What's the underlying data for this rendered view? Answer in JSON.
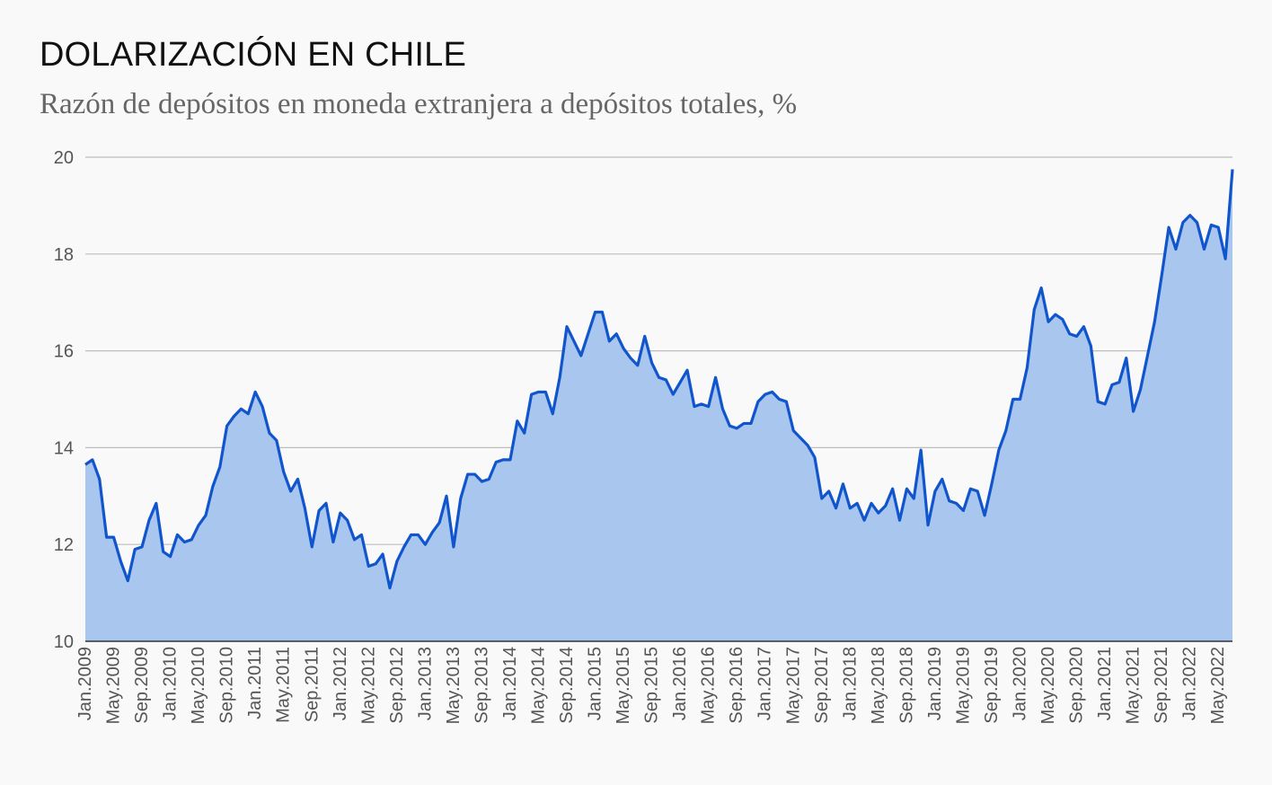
{
  "header": {
    "title": "DOLARIZACIÓN EN CHILE",
    "subtitle": "Razón de depósitos en moneda extranjera a depósitos totales, %"
  },
  "colors": {
    "line": "#1155cc",
    "area": "#a9c6ee",
    "grid": "#bdbdbd",
    "background": "#f9f9f9"
  },
  "chart_data": {
    "type": "area",
    "title": "DOLARIZACIÓN EN CHILE",
    "subtitle": "Razón de depósitos en moneda extranjera a depósitos totales, %",
    "xlabel": "",
    "ylabel": "",
    "ylim": [
      10,
      20
    ],
    "yticks": [
      10,
      12,
      14,
      16,
      18,
      20
    ],
    "grid": true,
    "x_start": "Jan.2009",
    "x_tick_labels": [
      "Jan.2009",
      "May.2009",
      "Sep.2009",
      "Jan.2010",
      "May.2010",
      "Sep.2010",
      "Jan.2011",
      "May.2011",
      "Sep.2011",
      "Jan.2012",
      "May.2012",
      "Sep.2012",
      "Jan.2013",
      "May.2013",
      "Sep.2013",
      "Jan.2014",
      "May.2014",
      "Sep.2014",
      "Jan.2015",
      "May.2015",
      "Sep.2015",
      "Jan.2016",
      "May.2016",
      "Sep.2016",
      "Jan.2017",
      "May.2017",
      "Sep.2017",
      "Jan.2018",
      "May.2018",
      "Sep.2018",
      "Jan.2019",
      "May.2019",
      "Sep.2019",
      "Jan.2020",
      "May.2020",
      "Sep.2020",
      "Jan.2021",
      "May.2021",
      "Sep.2021",
      "Jan.2022",
      "May.2022"
    ],
    "series": [
      {
        "name": "",
        "values": [
          13.65,
          13.75,
          13.35,
          12.15,
          12.15,
          11.65,
          11.25,
          11.9,
          11.95,
          12.5,
          12.85,
          11.85,
          11.75,
          12.2,
          12.05,
          12.1,
          12.4,
          12.6,
          13.2,
          13.6,
          14.45,
          14.65,
          14.8,
          14.7,
          15.15,
          14.85,
          14.3,
          14.15,
          13.5,
          13.1,
          13.35,
          12.75,
          11.95,
          12.7,
          12.85,
          12.05,
          12.65,
          12.5,
          12.1,
          12.2,
          11.55,
          11.6,
          11.8,
          11.1,
          11.65,
          11.95,
          12.2,
          12.2,
          12.0,
          12.25,
          12.45,
          13.0,
          11.95,
          12.95,
          13.45,
          13.45,
          13.3,
          13.35,
          13.7,
          13.75,
          13.75,
          14.55,
          14.3,
          15.1,
          15.15,
          15.15,
          14.7,
          15.45,
          16.5,
          16.2,
          15.9,
          16.35,
          16.8,
          16.8,
          16.2,
          16.35,
          16.05,
          15.85,
          15.7,
          16.3,
          15.75,
          15.45,
          15.4,
          15.1,
          15.35,
          15.6,
          14.85,
          14.9,
          14.85,
          15.45,
          14.8,
          14.45,
          14.4,
          14.5,
          14.5,
          14.95,
          15.1,
          15.15,
          15.0,
          14.95,
          14.35,
          14.2,
          14.05,
          13.8,
          12.95,
          13.1,
          12.75,
          13.25,
          12.75,
          12.85,
          12.5,
          12.85,
          12.65,
          12.8,
          13.15,
          12.5,
          13.15,
          12.95,
          13.95,
          12.4,
          13.1,
          13.35,
          12.9,
          12.85,
          12.7,
          13.15,
          13.1,
          12.6,
          13.25,
          13.95,
          14.35,
          15.0,
          15.0,
          15.65,
          16.85,
          17.3,
          16.6,
          16.75,
          16.65,
          16.35,
          16.3,
          16.5,
          16.1,
          14.95,
          14.9,
          15.3,
          15.35,
          15.85,
          14.75,
          15.2,
          15.9,
          16.6,
          17.55,
          18.55,
          18.1,
          18.65,
          18.8,
          18.65,
          18.1,
          18.6,
          18.55,
          17.9,
          19.75
        ]
      }
    ]
  }
}
